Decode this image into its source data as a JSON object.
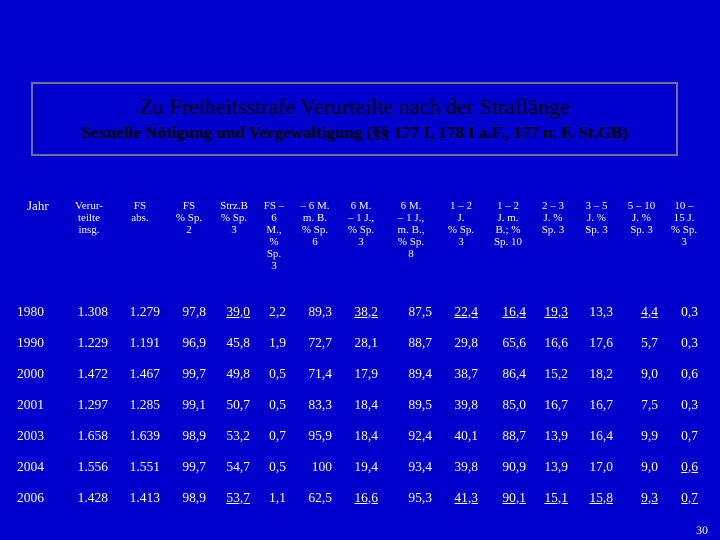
{
  "title": "Zu Freiheitsstrafe Verurteilte nach der Straflänge",
  "subtitle": "Sexuelle Nötigung und Vergewaltigung (§§ 177 I, 178 I a.F., 177 n. F. St.GB)",
  "colors": {
    "background": "#0000cc",
    "title_text": "#000000",
    "text": "#ffffff"
  },
  "headers": [
    "Jahr",
    "Verur-\nteilte\ninsg.",
    "FS\nabs.",
    "FS\n% Sp.\n2",
    "Strz.B\n% Sp.\n3",
    "FS –\n6\nM.,\n%\nSp.\n3",
    "– 6 M.\nm. B.\n% Sp.\n6",
    "6 M.\n– 1 J.,\n% Sp.\n3",
    "6 M.\n– 1 J.,\nm. B.,\n% Sp.\n8",
    "1 – 2\nJ.\n% Sp.\n3",
    "1 – 2\nJ. m.\nB.; %\nSp. 10",
    "2 – 3\nJ. %\nSp. 3",
    "3 – 5\nJ. %\nSp. 3",
    "5 – 10\nJ. %\nSp. 3",
    "10 –\n15 J.\n% Sp.\n3"
  ],
  "rows": [
    [
      "1980",
      "1.308",
      "1.279",
      "97,8",
      "39,0",
      "2,2",
      "89,3",
      "38,2",
      "87,5",
      "22,4",
      "16,4",
      "19,3",
      "13,3",
      "4,4",
      "0,3"
    ],
    [
      "1990",
      "1.229",
      "1.191",
      "96,9",
      "45,8",
      "1,9",
      "72,7",
      "28,1",
      "88,7",
      "29,8",
      "65,6",
      "16,6",
      "17,6",
      "5,7",
      "0,3"
    ],
    [
      "2000",
      "1.472",
      "1.467",
      "99,7",
      "49,8",
      "0,5",
      "71,4",
      "17,9",
      "89,4",
      "38,7",
      "86,4",
      "15,2",
      "18,2",
      "9,0",
      "0,6"
    ],
    [
      "2001",
      "1.297",
      "1.285",
      "99,1",
      "50,7",
      "0,5",
      "83,3",
      "18,4",
      "89,5",
      "39,8",
      "85,0",
      "16,7",
      "16,7",
      "7,5",
      "0,3"
    ],
    [
      "2003",
      "1.658",
      "1.639",
      "98,9",
      "53,2",
      "0,7",
      "95,9",
      "18,4",
      "92,4",
      "40,1",
      "88,7",
      "13,9",
      "16,4",
      "9,9",
      "0,7"
    ],
    [
      "2004",
      "1.556",
      "1.551",
      "99,7",
      "54,7",
      "0,5",
      "100",
      "19,4",
      "93,4",
      "39,8",
      "90,9",
      "13,9",
      "17,0",
      "9,0",
      "0,6"
    ],
    [
      "2006",
      "1.428",
      "1.413",
      "98,9",
      "53,7",
      "1,1",
      "62,5",
      "16,6",
      "95,3",
      "41,3",
      "90,1",
      "15,1",
      "15,8",
      "9,3",
      "0,7"
    ]
  ],
  "page_number": "30"
}
